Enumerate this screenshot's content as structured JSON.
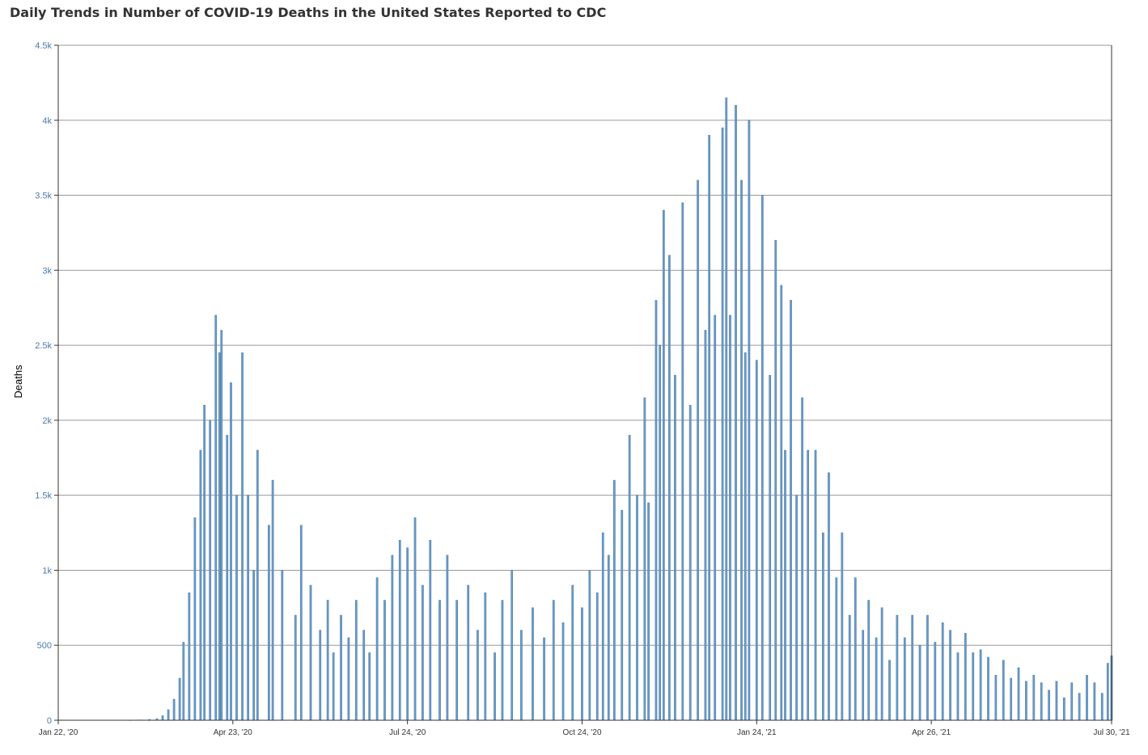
{
  "chart_data": {
    "type": "bar",
    "title": "Daily Trends in Number of COVID-19 Deaths in the United States Reported to CDC",
    "xlabel": "",
    "ylabel": "Deaths",
    "ylim": [
      0,
      4500
    ],
    "grid": true,
    "y_ticks": [
      {
        "value": 0,
        "label": "0"
      },
      {
        "value": 500,
        "label": "500"
      },
      {
        "value": 1000,
        "label": "1k"
      },
      {
        "value": 1500,
        "label": "1.5k"
      },
      {
        "value": 2000,
        "label": "2k"
      },
      {
        "value": 2500,
        "label": "2.5k"
      },
      {
        "value": 3000,
        "label": "3k"
      },
      {
        "value": 3500,
        "label": "3.5k"
      },
      {
        "value": 4000,
        "label": "4k"
      },
      {
        "value": 4500,
        "label": "4.5k"
      }
    ],
    "x_ticks": [
      {
        "date": "2020-01-22",
        "label": "Jan 22, '20"
      },
      {
        "date": "2020-04-23",
        "label": "Apr 23, '20"
      },
      {
        "date": "2020-07-24",
        "label": "Jul 24, '20"
      },
      {
        "date": "2020-10-24",
        "label": "Oct 24, '20"
      },
      {
        "date": "2021-01-24",
        "label": "Jan 24, '21"
      },
      {
        "date": "2021-04-26",
        "label": "Apr 26, '21"
      },
      {
        "date": "2021-07-30",
        "label": "Jul 30, '21"
      }
    ],
    "series": [
      {
        "name": "",
        "color": "#6f9cc7",
        "points": [
          [
            "2020-01-22",
            0
          ],
          [
            "2020-02-29",
            1
          ],
          [
            "2020-03-05",
            2
          ],
          [
            "2020-03-10",
            5
          ],
          [
            "2020-03-14",
            10
          ],
          [
            "2020-03-17",
            30
          ],
          [
            "2020-03-20",
            70
          ],
          [
            "2020-03-23",
            140
          ],
          [
            "2020-03-26",
            280
          ],
          [
            "2020-03-28",
            520
          ],
          [
            "2020-03-31",
            850
          ],
          [
            "2020-04-03",
            1350
          ],
          [
            "2020-04-06",
            1800
          ],
          [
            "2020-04-08",
            2100
          ],
          [
            "2020-04-11",
            2000
          ],
          [
            "2020-04-14",
            2700
          ],
          [
            "2020-04-16",
            2450
          ],
          [
            "2020-04-17",
            2600
          ],
          [
            "2020-04-20",
            1900
          ],
          [
            "2020-04-22",
            2250
          ],
          [
            "2020-04-25",
            1500
          ],
          [
            "2020-04-28",
            2450
          ],
          [
            "2020-05-01",
            1500
          ],
          [
            "2020-05-04",
            1000
          ],
          [
            "2020-05-06",
            1800
          ],
          [
            "2020-05-12",
            1300
          ],
          [
            "2020-05-14",
            1600
          ],
          [
            "2020-05-19",
            1000
          ],
          [
            "2020-05-26",
            700
          ],
          [
            "2020-05-29",
            1300
          ],
          [
            "2020-06-03",
            900
          ],
          [
            "2020-06-08",
            600
          ],
          [
            "2020-06-12",
            800
          ],
          [
            "2020-06-15",
            450
          ],
          [
            "2020-06-19",
            700
          ],
          [
            "2020-06-23",
            550
          ],
          [
            "2020-06-27",
            800
          ],
          [
            "2020-07-01",
            600
          ],
          [
            "2020-07-04",
            450
          ],
          [
            "2020-07-08",
            950
          ],
          [
            "2020-07-12",
            800
          ],
          [
            "2020-07-16",
            1100
          ],
          [
            "2020-07-20",
            1200
          ],
          [
            "2020-07-24",
            1150
          ],
          [
            "2020-07-28",
            1350
          ],
          [
            "2020-08-01",
            900
          ],
          [
            "2020-08-05",
            1200
          ],
          [
            "2020-08-10",
            800
          ],
          [
            "2020-08-14",
            1100
          ],
          [
            "2020-08-19",
            800
          ],
          [
            "2020-08-25",
            900
          ],
          [
            "2020-08-30",
            600
          ],
          [
            "2020-09-03",
            850
          ],
          [
            "2020-09-08",
            450
          ],
          [
            "2020-09-12",
            800
          ],
          [
            "2020-09-17",
            1000
          ],
          [
            "2020-09-22",
            600
          ],
          [
            "2020-09-28",
            750
          ],
          [
            "2020-10-04",
            550
          ],
          [
            "2020-10-09",
            800
          ],
          [
            "2020-10-14",
            650
          ],
          [
            "2020-10-19",
            900
          ],
          [
            "2020-10-24",
            750
          ],
          [
            "2020-10-28",
            1000
          ],
          [
            "2020-11-01",
            850
          ],
          [
            "2020-11-04",
            1250
          ],
          [
            "2020-11-07",
            1100
          ],
          [
            "2020-11-10",
            1600
          ],
          [
            "2020-11-14",
            1400
          ],
          [
            "2020-11-18",
            1900
          ],
          [
            "2020-11-22",
            1500
          ],
          [
            "2020-11-26",
            2150
          ],
          [
            "2020-11-28",
            1450
          ],
          [
            "2020-12-02",
            2800
          ],
          [
            "2020-12-04",
            2500
          ],
          [
            "2020-12-06",
            3400
          ],
          [
            "2020-12-09",
            3100
          ],
          [
            "2020-12-12",
            2300
          ],
          [
            "2020-12-16",
            3450
          ],
          [
            "2020-12-20",
            2100
          ],
          [
            "2020-12-24",
            3600
          ],
          [
            "2020-12-28",
            2600
          ],
          [
            "2020-12-30",
            3900
          ],
          [
            "2021-01-02",
            2700
          ],
          [
            "2021-01-06",
            3950
          ],
          [
            "2021-01-08",
            4150
          ],
          [
            "2021-01-10",
            2700
          ],
          [
            "2021-01-13",
            4100
          ],
          [
            "2021-01-16",
            3600
          ],
          [
            "2021-01-18",
            2450
          ],
          [
            "2021-01-20",
            4000
          ],
          [
            "2021-01-24",
            2400
          ],
          [
            "2021-01-27",
            3500
          ],
          [
            "2021-01-31",
            2300
          ],
          [
            "2021-02-03",
            3200
          ],
          [
            "2021-02-06",
            2900
          ],
          [
            "2021-02-08",
            1800
          ],
          [
            "2021-02-11",
            2800
          ],
          [
            "2021-02-14",
            1500
          ],
          [
            "2021-02-17",
            2150
          ],
          [
            "2021-02-20",
            1800
          ],
          [
            "2021-02-24",
            1800
          ],
          [
            "2021-02-28",
            1250
          ],
          [
            "2021-03-03",
            1650
          ],
          [
            "2021-03-07",
            950
          ],
          [
            "2021-03-10",
            1250
          ],
          [
            "2021-03-14",
            700
          ],
          [
            "2021-03-17",
            950
          ],
          [
            "2021-03-21",
            600
          ],
          [
            "2021-03-24",
            800
          ],
          [
            "2021-03-28",
            550
          ],
          [
            "2021-03-31",
            750
          ],
          [
            "2021-04-04",
            400
          ],
          [
            "2021-04-08",
            700
          ],
          [
            "2021-04-12",
            550
          ],
          [
            "2021-04-16",
            700
          ],
          [
            "2021-04-20",
            500
          ],
          [
            "2021-04-24",
            700
          ],
          [
            "2021-04-28",
            520
          ],
          [
            "2021-05-02",
            650
          ],
          [
            "2021-05-06",
            600
          ],
          [
            "2021-05-10",
            450
          ],
          [
            "2021-05-14",
            580
          ],
          [
            "2021-05-18",
            450
          ],
          [
            "2021-05-22",
            470
          ],
          [
            "2021-05-26",
            420
          ],
          [
            "2021-05-30",
            300
          ],
          [
            "2021-06-03",
            400
          ],
          [
            "2021-06-07",
            280
          ],
          [
            "2021-06-11",
            350
          ],
          [
            "2021-06-15",
            260
          ],
          [
            "2021-06-19",
            300
          ],
          [
            "2021-06-23",
            250
          ],
          [
            "2021-06-27",
            200
          ],
          [
            "2021-07-01",
            260
          ],
          [
            "2021-07-05",
            150
          ],
          [
            "2021-07-09",
            250
          ],
          [
            "2021-07-13",
            180
          ],
          [
            "2021-07-17",
            300
          ],
          [
            "2021-07-21",
            250
          ],
          [
            "2021-07-25",
            180
          ],
          [
            "2021-07-28",
            380
          ],
          [
            "2021-07-30",
            430
          ]
        ]
      }
    ]
  }
}
